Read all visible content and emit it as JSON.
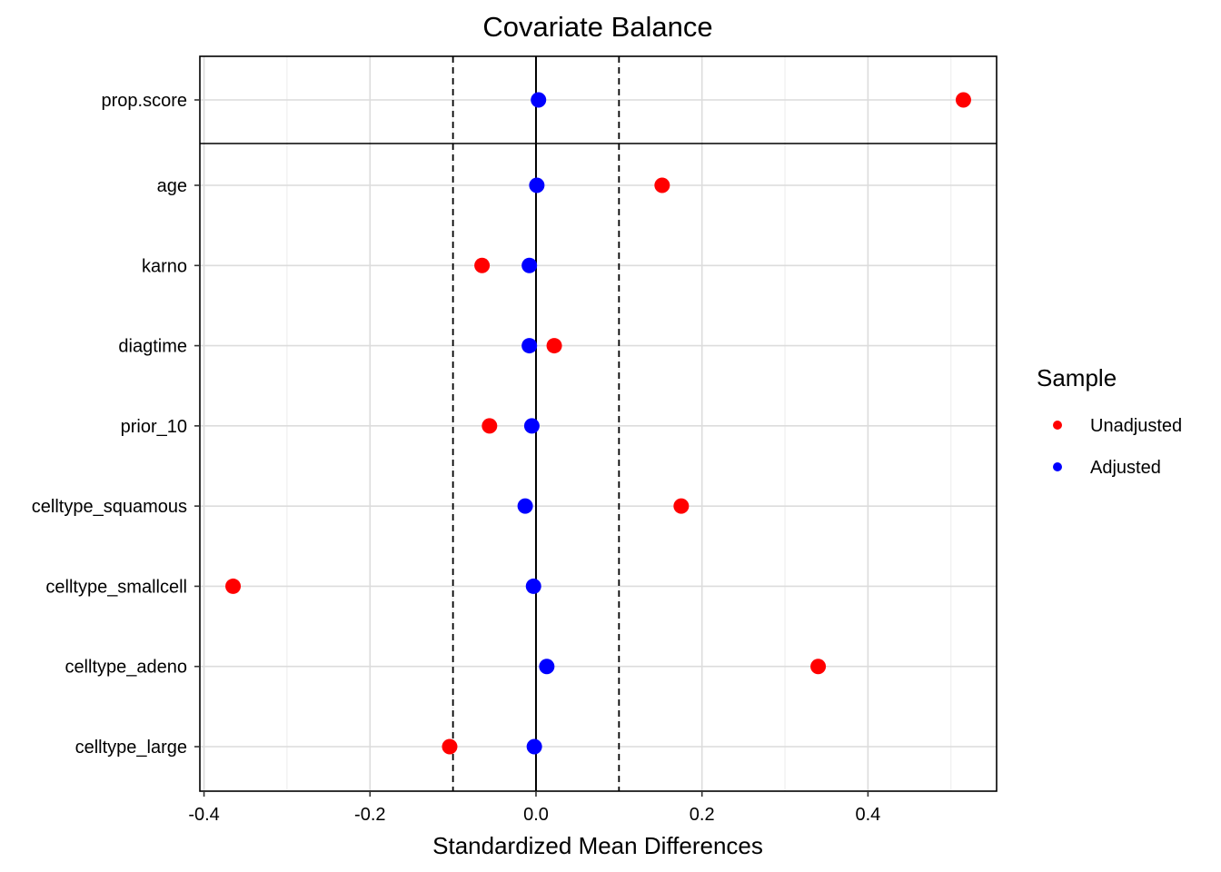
{
  "chart_data": {
    "type": "scatter",
    "title": "Covariate Balance",
    "xlabel": "Standardized Mean Differences",
    "ylabel": "",
    "xlim": [
      -0.405,
      0.555
    ],
    "x_ticks": [
      -0.4,
      -0.2,
      0.0,
      0.2,
      0.4
    ],
    "x_tick_labels": [
      "-0.4",
      "-0.2",
      "0.0",
      "0.2",
      "0.4"
    ],
    "threshold_lines": [
      -0.1,
      0.1
    ],
    "zero_line": 0,
    "grid": true,
    "legend_position": "right",
    "legend_title": "Sample",
    "top_panel_categories": [
      "prop.score"
    ],
    "categories": [
      "prop.score",
      "age",
      "karno",
      "diagtime",
      "prior_10",
      "celltype_squamous",
      "celltype_smallcell",
      "celltype_adeno",
      "celltype_large"
    ],
    "series": [
      {
        "name": "Unadjusted",
        "color": "#ff0000",
        "values": [
          0.515,
          0.152,
          -0.065,
          0.022,
          -0.056,
          0.175,
          -0.365,
          0.34,
          -0.104
        ]
      },
      {
        "name": "Adjusted",
        "color": "#0000ff",
        "values": [
          0.003,
          0.001,
          -0.008,
          -0.008,
          -0.005,
          -0.013,
          -0.003,
          0.013,
          -0.002
        ]
      }
    ]
  }
}
